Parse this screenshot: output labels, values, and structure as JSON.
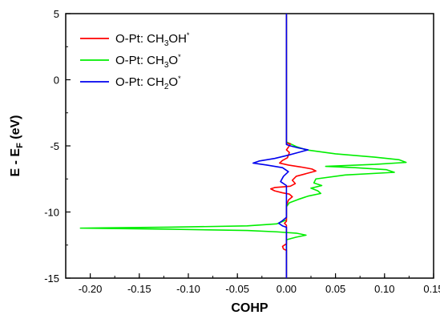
{
  "chart_data": {
    "type": "line",
    "xlabel": "COHP",
    "ylabel_parts": {
      "main": "E - E",
      "sub": "F",
      "unit": " (eV)"
    },
    "xlim": [
      -0.225,
      0.15
    ],
    "ylim": [
      -15,
      5
    ],
    "xticks": [
      -0.2,
      -0.15,
      -0.1,
      -0.05,
      0.0,
      0.05,
      0.1,
      0.15
    ],
    "xtick_labels": [
      "-0.20",
      "-0.15",
      "-0.10",
      "-0.05",
      "0.00",
      "0.05",
      "0.10",
      "0.15"
    ],
    "yticks": [
      5,
      0,
      -5,
      -10,
      -15
    ],
    "ytick_labels": [
      "5",
      "0",
      "-5",
      "-10",
      "-15"
    ],
    "grid": false,
    "legend_position": "top-left",
    "series": [
      {
        "name": "O-Pt: CH3OH*",
        "label_parts": {
          "prefix": "O-Pt: CH",
          "sub": "3",
          "suffix": "OH",
          "sup": "*"
        },
        "color": "#ff0000",
        "points": [
          [
            0,
            5
          ],
          [
            0,
            -4.8
          ],
          [
            0.004,
            -4.85
          ],
          [
            0.002,
            -5.1
          ],
          [
            0,
            -5.3
          ],
          [
            0.003,
            -5.5
          ],
          [
            0.001,
            -5.9
          ],
          [
            -0.004,
            -6.1
          ],
          [
            -0.007,
            -6.3
          ],
          [
            0.002,
            -6.45
          ],
          [
            0.015,
            -6.6
          ],
          [
            0.026,
            -6.75
          ],
          [
            0.03,
            -6.9
          ],
          [
            0.02,
            -7.1
          ],
          [
            0.01,
            -7.3
          ],
          [
            0.006,
            -7.6
          ],
          [
            0.009,
            -7.85
          ],
          [
            0.004,
            -8.05
          ],
          [
            -0.004,
            -8.1
          ],
          [
            -0.012,
            -8.15
          ],
          [
            -0.016,
            -8.25
          ],
          [
            -0.012,
            -8.4
          ],
          [
            -0.004,
            -8.55
          ],
          [
            0.003,
            -8.65
          ],
          [
            0.006,
            -8.85
          ],
          [
            0.002,
            -9.1
          ],
          [
            0,
            -9.5
          ],
          [
            0,
            -10.7
          ],
          [
            -0.002,
            -10.85
          ],
          [
            0,
            -11
          ],
          [
            0,
            -12.4
          ],
          [
            -0.004,
            -12.6
          ],
          [
            -0.003,
            -12.8
          ],
          [
            0,
            -12.9
          ],
          [
            0,
            -15
          ]
        ]
      },
      {
        "name": "O-Pt: CH3O*",
        "label_parts": {
          "prefix": "O-Pt: CH",
          "sub": "3",
          "suffix": "O",
          "sup": "*"
        },
        "color": "#00ee00",
        "points": [
          [
            0,
            5
          ],
          [
            0,
            -4.7
          ],
          [
            0.01,
            -5.05
          ],
          [
            0.02,
            -5.3
          ],
          [
            0.05,
            -5.6
          ],
          [
            0.09,
            -5.85
          ],
          [
            0.115,
            -6.05
          ],
          [
            0.122,
            -6.25
          ],
          [
            0.09,
            -6.4
          ],
          [
            0.04,
            -6.55
          ],
          [
            0.07,
            -6.65
          ],
          [
            0.102,
            -6.8
          ],
          [
            0.11,
            -7.0
          ],
          [
            0.06,
            -7.2
          ],
          [
            0.03,
            -7.5
          ],
          [
            0.028,
            -7.8
          ],
          [
            0.036,
            -8.0
          ],
          [
            0.025,
            -8.2
          ],
          [
            0.032,
            -8.4
          ],
          [
            0.035,
            -8.6
          ],
          [
            0.022,
            -8.8
          ],
          [
            0.012,
            -9.05
          ],
          [
            0.003,
            -9.3
          ],
          [
            0,
            -9.6
          ],
          [
            0,
            -10.6
          ],
          [
            -0.01,
            -10.9
          ],
          [
            -0.04,
            -11.05
          ],
          [
            -0.12,
            -11.15
          ],
          [
            -0.21,
            -11.22
          ],
          [
            -0.12,
            -11.3
          ],
          [
            -0.04,
            -11.4
          ],
          [
            -0.01,
            -11.5
          ],
          [
            0.01,
            -11.6
          ],
          [
            0.02,
            -11.75
          ],
          [
            0.01,
            -11.9
          ],
          [
            0,
            -12.1
          ],
          [
            0,
            -15
          ]
        ]
      },
      {
        "name": "O-Pt: CH2O*",
        "label_parts": {
          "prefix": "O-Pt: CH",
          "sub": "2",
          "suffix": "O",
          "sup": "*"
        },
        "color": "#0000ee",
        "points": [
          [
            0,
            5
          ],
          [
            0,
            -4.9
          ],
          [
            0.004,
            -5.0
          ],
          [
            0.012,
            -5.15
          ],
          [
            0.022,
            -5.3
          ],
          [
            0.012,
            -5.5
          ],
          [
            0.002,
            -5.7
          ],
          [
            -0.012,
            -5.95
          ],
          [
            -0.028,
            -6.15
          ],
          [
            -0.034,
            -6.3
          ],
          [
            -0.02,
            -6.45
          ],
          [
            -0.004,
            -6.65
          ],
          [
            0.002,
            -6.95
          ],
          [
            -0.003,
            -7.3
          ],
          [
            -0.006,
            -7.7
          ],
          [
            0,
            -8.0
          ],
          [
            0,
            -10.4
          ],
          [
            -0.004,
            -10.65
          ],
          [
            -0.008,
            -10.85
          ],
          [
            -0.004,
            -11.05
          ],
          [
            0,
            -11.15
          ],
          [
            0,
            -15
          ]
        ]
      }
    ]
  }
}
